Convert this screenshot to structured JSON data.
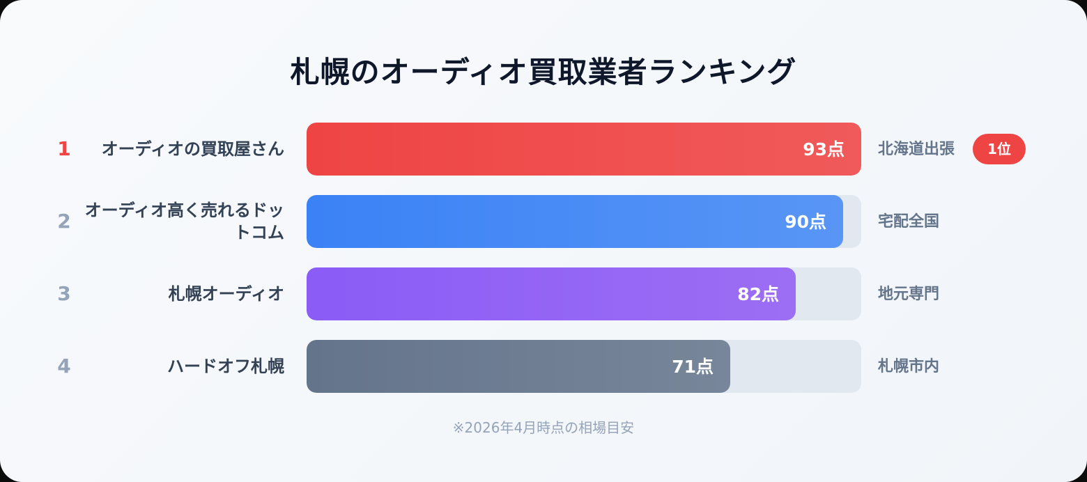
{
  "chart_data": {
    "type": "bar",
    "orientation": "horizontal",
    "title": "札幌のオーディオ買取業者ランキング",
    "xlim": [
      0,
      100
    ],
    "value_suffix": "点",
    "categories": [
      "オーディオの買取屋さん",
      "オーディオ高く売れるドットコム",
      "札幌オーディオ",
      "ハードオフ札幌"
    ],
    "values": [
      93,
      90,
      82,
      71
    ],
    "ranks": [
      "1",
      "2",
      "3",
      "4"
    ],
    "value_labels": [
      "93点",
      "90点",
      "82点",
      "71点"
    ],
    "areas": [
      "北海道出張",
      "宅配全国",
      "地元専門",
      "札幌市内"
    ],
    "colors": [
      "#ef4444",
      "#3b82f6",
      "#8b5cf6",
      "#64748b"
    ],
    "colors_end": [
      "#f05a5a",
      "#5895f5",
      "#9c6ef4",
      "#78869a"
    ],
    "badge": {
      "row": 0,
      "label": "1位",
      "color": "#ef4444"
    },
    "footnote": "※2026年4月時点の相場目安",
    "grid": false,
    "legend": "none"
  }
}
